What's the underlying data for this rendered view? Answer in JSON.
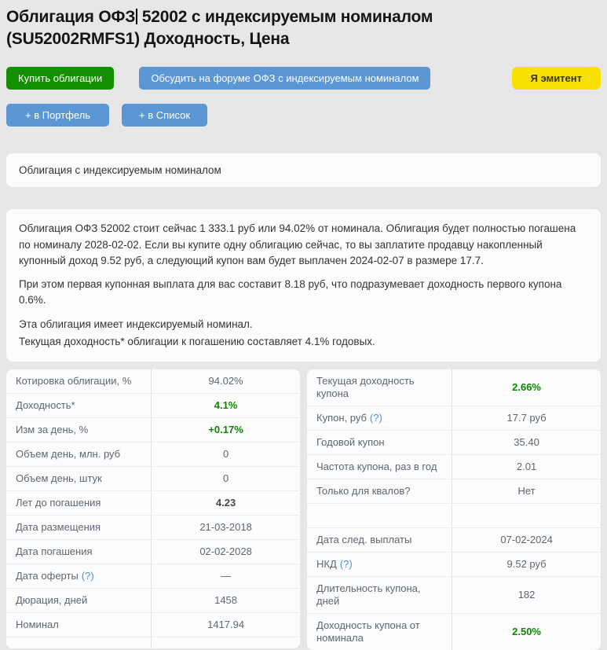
{
  "colors": {
    "buy_button_green": "#148f00",
    "action_button_blue": "#5b97d5",
    "emitent_button_yellow": "#f8e000",
    "positive_value_green": "#0e8500",
    "help_link_blue": "#4a90d9",
    "page_background": "#e7e7e7"
  },
  "title": {
    "part1": "Облигация ОФЗ",
    "part2": "52002 с индексируемым номиналом",
    "line2": "(SU52002RMFS1) Доходность, Цена"
  },
  "buttons": {
    "buy": "Купить облигации",
    "forum": "Обсудить на форуме ОФЗ с индексируемым номиналом",
    "emitent": "Я эмитент",
    "portfolio": "+ в Портфель",
    "list": "+ в Список"
  },
  "type_card": {
    "text": "Облигация с индексируемым номиналом"
  },
  "description": {
    "p1": "Облигация ОФЗ 52002 стоит сейчас 1 333.1 руб или 94.02% от номинала. Облигация будет полностью погашена по номиналу 2028-02-02. Если вы купите одну облигацию сейчас, то вы заплатите продавцу накопленный купонный доход 9.52 руб, а следующий купон вам будет выплачен 2024-02-07 в размере 17.7.",
    "p2": "При этом первая купонная выплата для вас составит 8.18 руб, что подразумевает доходность первого купона 0.6%.",
    "p3": "Эта облигация имеет индексируемый номинал.",
    "p4": "Текущая доходность* облигации к погашению составляет 4.1% годовых."
  },
  "left_table": {
    "rows": [
      {
        "label": "Котировка облигации, %",
        "value": "94.02%"
      },
      {
        "label": "Доходность*",
        "value": "4.1%",
        "style": "green"
      },
      {
        "label": "Изм за день, %",
        "value": "+0.17%",
        "style": "green"
      },
      {
        "label": "Объем день, млн. руб",
        "value": "0"
      },
      {
        "label": "Объем день, штук",
        "value": "0"
      },
      {
        "label": "Лет до погашения",
        "value": "4.23",
        "style": "bold"
      },
      {
        "label": "Дата размещения",
        "value": "21-03-2018"
      },
      {
        "label": "Дата погашения",
        "value": "02-02-2028"
      },
      {
        "label": "Дата оферты",
        "help": "(?)",
        "value": "—"
      },
      {
        "label": "Дюрация, дней",
        "value": "1458"
      },
      {
        "label": "Номинал",
        "value": "1417.94"
      }
    ]
  },
  "right_table": {
    "rows": [
      {
        "label": "Текущая доходность купона",
        "value": "2.66%",
        "style": "green"
      },
      {
        "label": "Купон, руб",
        "help": "(?)",
        "value": "17.7 руб"
      },
      {
        "label": "Годовой купон",
        "value": "35.40"
      },
      {
        "label": "Частота купона, раз в год",
        "value": "2.01"
      },
      {
        "label": "Только для квалов?",
        "value": "Нет"
      },
      {
        "label": "",
        "value": "",
        "style": "empty"
      },
      {
        "label": "Дата след. выплаты",
        "value": "07-02-2024"
      },
      {
        "label": "НКД",
        "help": "(?)",
        "value": "9.52 руб"
      },
      {
        "label": "Длительность купона, дней",
        "value": "182"
      },
      {
        "label": "Доходность купона от номинала",
        "value": "2.50%",
        "style": "green"
      }
    ]
  }
}
